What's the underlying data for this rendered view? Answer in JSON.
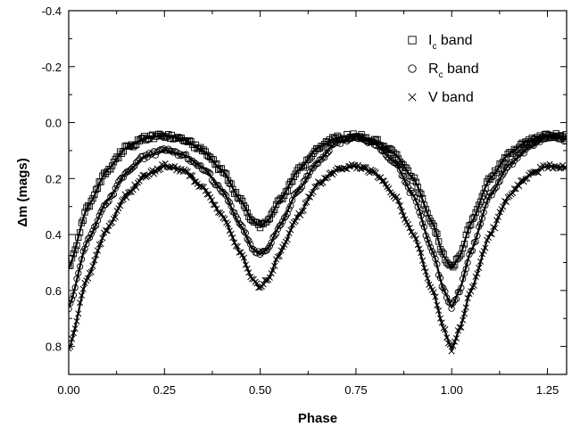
{
  "chart_data": {
    "type": "scatter",
    "title": "",
    "xlabel": "Phase",
    "ylabel": "Δm (mags)",
    "xlim": [
      0.0,
      1.3
    ],
    "ylim": [
      0.9,
      -0.4
    ],
    "y_axis_inverted": true,
    "xticks": [
      "0.00",
      "0.25",
      "0.50",
      "0.75",
      "1.00",
      "1.25"
    ],
    "xtick_values": [
      0.0,
      0.25,
      0.5,
      0.75,
      1.0,
      1.25
    ],
    "yticks": [
      "-0.4",
      "-0.2",
      "0.0",
      "0.2",
      "0.4",
      "0.6",
      "0.8"
    ],
    "ytick_values": [
      -0.4,
      -0.2,
      0.0,
      0.2,
      0.4,
      0.6,
      0.8
    ],
    "grid": false,
    "legend_position": "top-right",
    "legend": [
      {
        "marker": "square",
        "prefix": "I",
        "sub": "c",
        "suffix": " band"
      },
      {
        "marker": "circle",
        "prefix": "R",
        "sub": "c",
        "suffix": " band"
      },
      {
        "marker": "cross",
        "prefix": "V band",
        "sub": "",
        "suffix": ""
      }
    ],
    "series": [
      {
        "band": "Ic",
        "marker": "square",
        "points": [
          [
            0.0,
            0.52
          ],
          [
            0.05,
            0.3
          ],
          [
            0.1,
            0.17
          ],
          [
            0.15,
            0.09
          ],
          [
            0.2,
            0.055
          ],
          [
            0.25,
            0.045
          ],
          [
            0.3,
            0.06
          ],
          [
            0.35,
            0.1
          ],
          [
            0.4,
            0.17
          ],
          [
            0.45,
            0.28
          ],
          [
            0.48,
            0.35
          ],
          [
            0.5,
            0.37
          ],
          [
            0.52,
            0.35
          ],
          [
            0.55,
            0.28
          ],
          [
            0.6,
            0.17
          ],
          [
            0.65,
            0.09
          ],
          [
            0.7,
            0.055
          ],
          [
            0.75,
            0.045
          ],
          [
            0.8,
            0.065
          ],
          [
            0.85,
            0.11
          ],
          [
            0.9,
            0.2
          ],
          [
            0.95,
            0.36
          ],
          [
            0.98,
            0.48
          ],
          [
            1.0,
            0.52
          ],
          [
            1.02,
            0.48
          ],
          [
            1.05,
            0.36
          ],
          [
            1.1,
            0.2
          ],
          [
            1.15,
            0.11
          ],
          [
            1.2,
            0.065
          ],
          [
            1.25,
            0.045
          ],
          [
            1.3,
            0.05
          ]
        ]
      },
      {
        "band": "Rc",
        "marker": "circle",
        "points": [
          [
            0.0,
            0.66
          ],
          [
            0.05,
            0.42
          ],
          [
            0.1,
            0.28
          ],
          [
            0.15,
            0.18
          ],
          [
            0.2,
            0.12
          ],
          [
            0.25,
            0.1
          ],
          [
            0.3,
            0.115
          ],
          [
            0.35,
            0.16
          ],
          [
            0.4,
            0.24
          ],
          [
            0.45,
            0.37
          ],
          [
            0.48,
            0.45
          ],
          [
            0.5,
            0.47
          ],
          [
            0.52,
            0.45
          ],
          [
            0.55,
            0.37
          ],
          [
            0.6,
            0.24
          ],
          [
            0.65,
            0.14
          ],
          [
            0.7,
            0.07
          ],
          [
            0.75,
            0.05
          ],
          [
            0.8,
            0.075
          ],
          [
            0.85,
            0.14
          ],
          [
            0.9,
            0.26
          ],
          [
            0.95,
            0.46
          ],
          [
            0.98,
            0.6
          ],
          [
            1.0,
            0.66
          ],
          [
            1.02,
            0.6
          ],
          [
            1.05,
            0.46
          ],
          [
            1.1,
            0.26
          ],
          [
            1.15,
            0.15
          ],
          [
            1.2,
            0.09
          ],
          [
            1.25,
            0.05
          ],
          [
            1.3,
            0.06
          ]
        ]
      },
      {
        "band": "V",
        "marker": "cross",
        "points": [
          [
            0.0,
            0.81
          ],
          [
            0.05,
            0.55
          ],
          [
            0.1,
            0.38
          ],
          [
            0.15,
            0.26
          ],
          [
            0.2,
            0.19
          ],
          [
            0.25,
            0.155
          ],
          [
            0.3,
            0.17
          ],
          [
            0.35,
            0.23
          ],
          [
            0.4,
            0.33
          ],
          [
            0.45,
            0.47
          ],
          [
            0.48,
            0.56
          ],
          [
            0.5,
            0.59
          ],
          [
            0.52,
            0.56
          ],
          [
            0.55,
            0.47
          ],
          [
            0.6,
            0.33
          ],
          [
            0.65,
            0.22
          ],
          [
            0.7,
            0.17
          ],
          [
            0.75,
            0.155
          ],
          [
            0.8,
            0.18
          ],
          [
            0.85,
            0.26
          ],
          [
            0.9,
            0.4
          ],
          [
            0.95,
            0.6
          ],
          [
            0.98,
            0.74
          ],
          [
            1.0,
            0.81
          ],
          [
            1.02,
            0.74
          ],
          [
            1.05,
            0.6
          ],
          [
            1.1,
            0.4
          ],
          [
            1.15,
            0.26
          ],
          [
            1.2,
            0.19
          ],
          [
            1.25,
            0.155
          ],
          [
            1.3,
            0.16
          ]
        ]
      }
    ]
  }
}
